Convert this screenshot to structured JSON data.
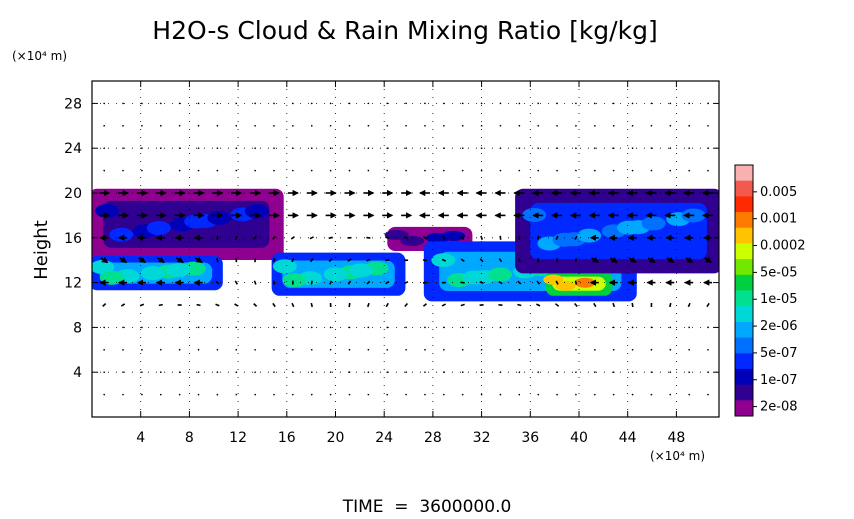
{
  "chart_data": {
    "type": "heatmap",
    "title": "H2O-s Cloud & Rain Mixing Ratio [kg/kg]",
    "ylabel": "Height",
    "x_unit": "(×10⁴ m)",
    "y_unit": "(×10⁴ m)",
    "xlim": [
      0,
      51.5
    ],
    "ylim": [
      0,
      30
    ],
    "x_ticks": [
      4,
      8,
      12,
      16,
      20,
      24,
      28,
      32,
      36,
      40,
      44,
      48
    ],
    "y_ticks": [
      4,
      8,
      12,
      16,
      20,
      24,
      28
    ],
    "grid": true,
    "overlay": "wind vectors",
    "footer": "TIME  =  3600000.0",
    "colorbar": {
      "labels": [
        "0.005",
        "0.001",
        "0.0002",
        "5e-05",
        "1e-05",
        "2e-06",
        "5e-07",
        "1e-07",
        "2e-08"
      ],
      "colors": [
        "#f8b0b0",
        "#f25a50",
        "#ff2a00",
        "#ff7a00",
        "#ffc300",
        "#ccff00",
        "#70e800",
        "#00d040",
        "#00e090",
        "#00d8d8",
        "#00a8ff",
        "#0070ff",
        "#0028ff",
        "#0000b8",
        "#300090",
        "#900090"
      ]
    },
    "cloud_regions": [
      {
        "name": "upper-anvil-west",
        "level": 1,
        "x": [
          0,
          15.5
        ],
        "y": [
          14.2,
          20.2
        ]
      },
      {
        "name": "mid-cloud-west",
        "level": 5,
        "x": [
          0,
          10.5
        ],
        "y": [
          11.5,
          14.2
        ]
      },
      {
        "name": "core-16-25",
        "level": 5,
        "x": [
          15.0,
          25.5
        ],
        "y": [
          11.0,
          14.5
        ]
      },
      {
        "name": "cirrus-patch",
        "level": 0,
        "x": [
          24.5,
          31.0
        ],
        "y": [
          15.0,
          16.8
        ]
      },
      {
        "name": "core-28-44",
        "level": 5,
        "x": [
          27.5,
          44.5
        ],
        "y": [
          10.5,
          15.5
        ]
      },
      {
        "name": "intense-core",
        "level": 10,
        "x": [
          37.5,
          42.5
        ],
        "y": [
          11.0,
          12.8
        ]
      },
      {
        "name": "upper-anvil-east",
        "level": 3,
        "x": [
          35.0,
          51.5
        ],
        "y": [
          13.0,
          20.2
        ]
      }
    ]
  }
}
